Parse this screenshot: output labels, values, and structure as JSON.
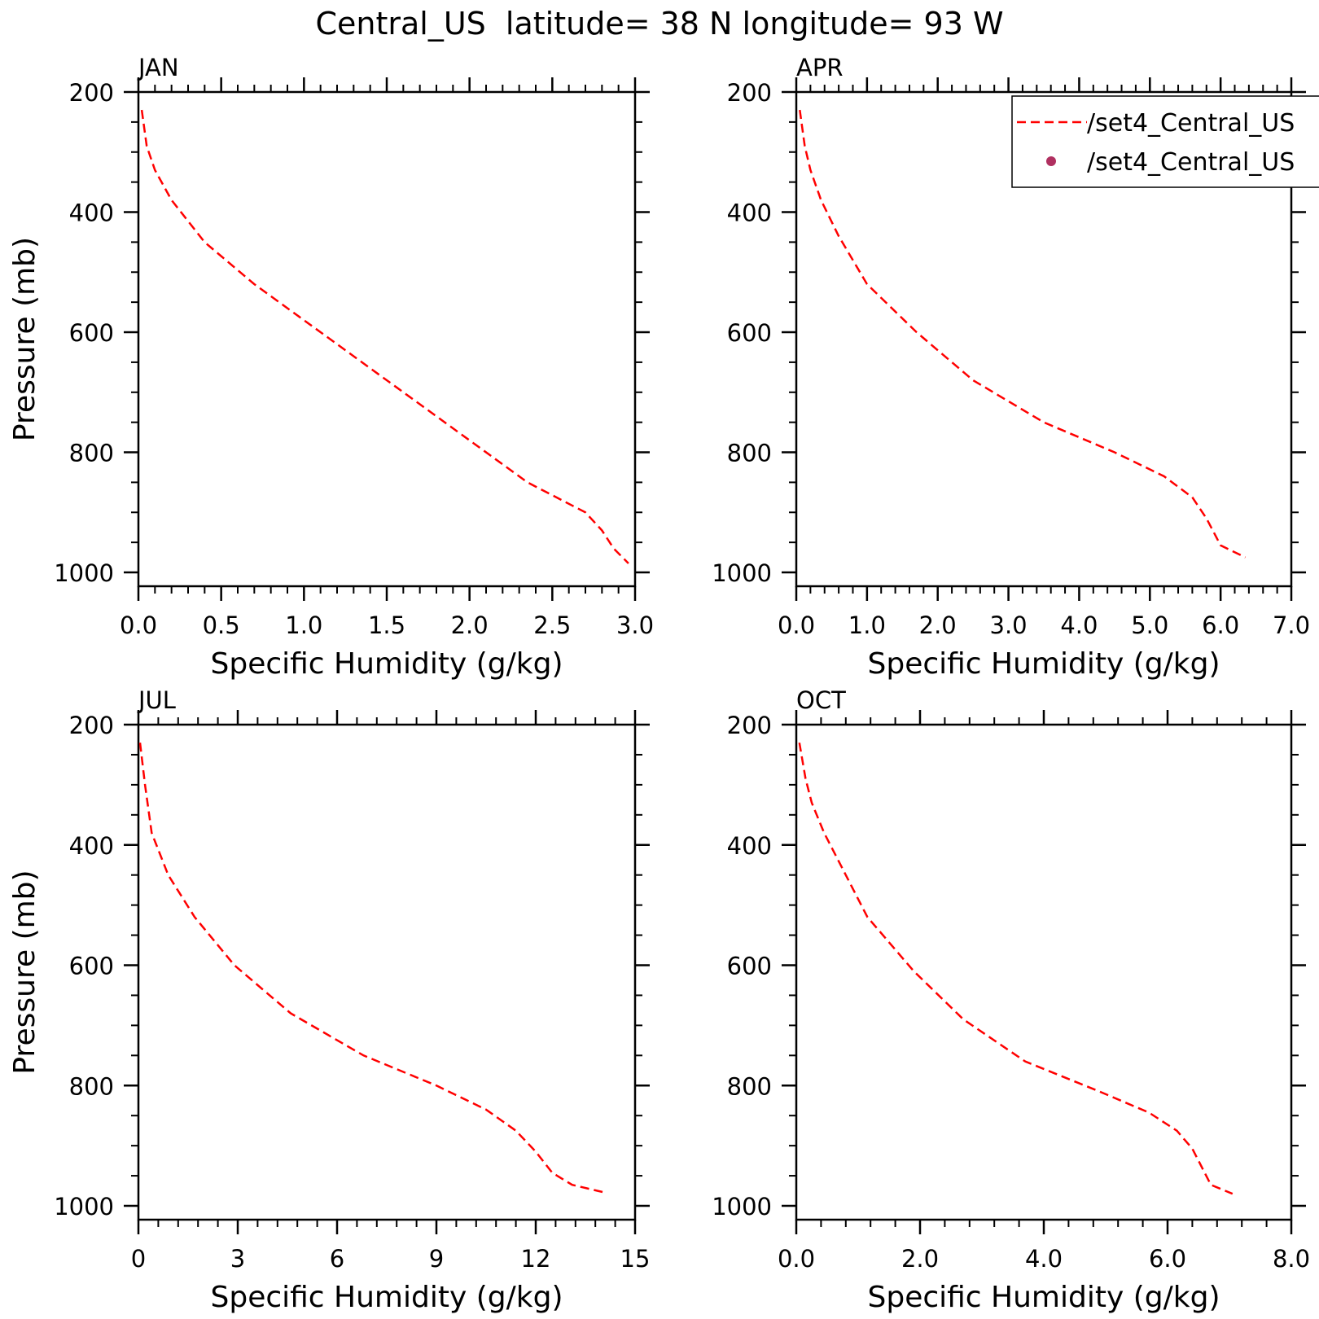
{
  "figure": {
    "title": "Central_US  latitude= 38 N longitude= 93 W"
  },
  "legend": {
    "placement": "top-right of APR panel (clipped at page edge)",
    "items": [
      {
        "label": "/set4_Central_US",
        "style": "dashed-line",
        "color": "#ff0000"
      },
      {
        "label": "/set4_Central_US",
        "style": "dot",
        "color": "#b03060"
      }
    ]
  },
  "chart_data": [
    {
      "type": "line",
      "panel_title": "JAN",
      "xlabel": "Specific Humidity (g/kg)",
      "ylabel": "Pressure (mb)",
      "xlim": [
        0,
        3.0
      ],
      "ylim": [
        1000,
        200
      ],
      "y_inverted": true,
      "xticks": [
        0.0,
        0.5,
        1.0,
        1.5,
        2.0,
        2.5,
        3.0
      ],
      "xtick_labels": [
        "0.0",
        "0.5",
        "1.0",
        "1.5",
        "2.0",
        "2.5",
        "3.0"
      ],
      "yticks": [
        200,
        400,
        600,
        800,
        1000
      ],
      "ytick_labels": [
        "200",
        "400",
        "600",
        "800",
        "1000"
      ],
      "series": [
        {
          "color": "#ff0000",
          "style": "dashed",
          "x": [
            0.02,
            0.05,
            0.1,
            0.2,
            0.4,
            0.7,
            1.1,
            1.5,
            2.0,
            2.35,
            2.7,
            2.8,
            2.87,
            2.96
          ],
          "y": [
            230,
            290,
            330,
            380,
            450,
            520,
            600,
            680,
            780,
            850,
            900,
            930,
            960,
            985
          ]
        }
      ]
    },
    {
      "type": "line",
      "panel_title": "APR",
      "xlabel": "Specific Humidity (g/kg)",
      "ylabel": "",
      "xlim": [
        0,
        7.0
      ],
      "ylim": [
        1000,
        200
      ],
      "y_inverted": true,
      "xticks": [
        0.0,
        1.0,
        2.0,
        3.0,
        4.0,
        5.0,
        6.0,
        7.0
      ],
      "xtick_labels": [
        "0.0",
        "1.0",
        "2.0",
        "3.0",
        "4.0",
        "5.0",
        "6.0",
        "7.0"
      ],
      "yticks": [
        200,
        400,
        600,
        800,
        1000
      ],
      "ytick_labels": [
        "200",
        "400",
        "600",
        "800",
        "1000"
      ],
      "series": [
        {
          "color": "#ff0000",
          "style": "dashed",
          "x": [
            0.05,
            0.12,
            0.2,
            0.35,
            0.6,
            1.0,
            1.7,
            2.5,
            3.5,
            4.5,
            5.2,
            5.6,
            5.8,
            6.0,
            6.35
          ],
          "y": [
            230,
            290,
            330,
            380,
            440,
            520,
            600,
            680,
            750,
            800,
            840,
            875,
            910,
            955,
            975
          ]
        }
      ]
    },
    {
      "type": "line",
      "panel_title": "JUL",
      "xlabel": "Specific Humidity (g/kg)",
      "ylabel": "Pressure (mb)",
      "xlim": [
        0,
        15
      ],
      "ylim": [
        1000,
        200
      ],
      "y_inverted": true,
      "xticks": [
        0,
        3,
        6,
        9,
        12,
        15
      ],
      "xtick_labels": [
        "0",
        "3",
        "6",
        "9",
        "12",
        "15"
      ],
      "yticks": [
        200,
        400,
        600,
        800,
        1000
      ],
      "ytick_labels": [
        "200",
        "400",
        "600",
        "800",
        "1000"
      ],
      "series": [
        {
          "color": "#ff0000",
          "style": "dashed",
          "x": [
            0.05,
            0.2,
            0.4,
            0.9,
            1.7,
            2.9,
            4.6,
            6.8,
            9.0,
            10.5,
            11.4,
            12.0,
            12.5,
            13.1,
            14.1
          ],
          "y": [
            230,
            300,
            380,
            450,
            520,
            600,
            680,
            750,
            800,
            840,
            875,
            910,
            945,
            965,
            978
          ]
        }
      ]
    },
    {
      "type": "line",
      "panel_title": "OCT",
      "xlabel": "Specific Humidity (g/kg)",
      "ylabel": "",
      "xlim": [
        0,
        8.0
      ],
      "ylim": [
        1000,
        200
      ],
      "y_inverted": true,
      "xticks": [
        0.0,
        2.0,
        4.0,
        6.0,
        8.0
      ],
      "xtick_labels": [
        "0.0",
        "2.0",
        "4.0",
        "6.0",
        "8.0"
      ],
      "yticks": [
        200,
        400,
        600,
        800,
        1000
      ],
      "ytick_labels": [
        "200",
        "400",
        "600",
        "800",
        "1000"
      ],
      "series": [
        {
          "color": "#ff0000",
          "style": "dashed",
          "x": [
            0.05,
            0.15,
            0.25,
            0.45,
            0.75,
            1.15,
            1.9,
            2.7,
            3.7,
            4.9,
            5.7,
            6.15,
            6.4,
            6.55,
            6.7,
            7.05
          ],
          "y": [
            230,
            290,
            330,
            380,
            440,
            520,
            610,
            690,
            760,
            810,
            845,
            875,
            905,
            935,
            965,
            980
          ]
        }
      ]
    }
  ]
}
